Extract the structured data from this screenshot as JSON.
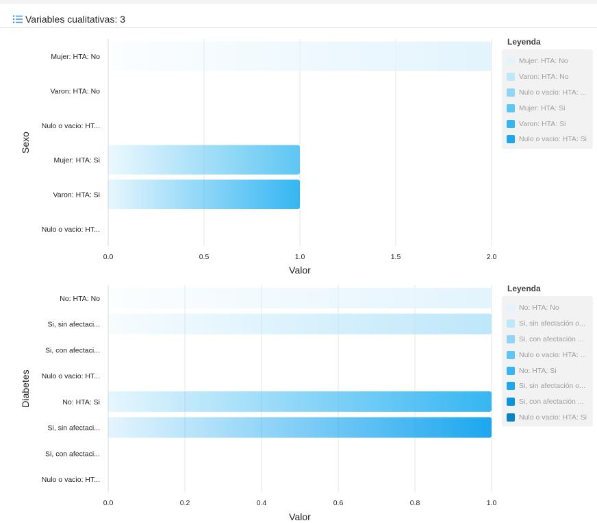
{
  "header": {
    "title": "Variables cualitativas: 3",
    "icon": "list-icon"
  },
  "colors": [
    "#e3f4fd",
    "#bde7fa",
    "#8fd6f6",
    "#5ec6f3",
    "#35b6f2",
    "#1ca7ef",
    "#0b95dc",
    "#0884c4"
  ],
  "chart_data": [
    {
      "type": "bar",
      "orientation": "horizontal",
      "ylabel": "Sexo",
      "xlabel": "Valor",
      "categories": [
        "Mujer: HTA: No",
        "Varon: HTA: No",
        "Nulo o vacio: HT...",
        "Mujer: HTA: Si",
        "Varon: HTA: Si",
        "Nulo o vacio: HT..."
      ],
      "values": [
        2,
        0,
        0,
        1,
        1,
        0
      ],
      "xlim": [
        0,
        2
      ],
      "xticks": [
        "0.0",
        "0.5",
        "1.0",
        "1.5",
        "2.0"
      ],
      "legend_title": "Leyenda",
      "legend": [
        "Mujer: HTA: No",
        "Varon: HTA: No",
        "Nulo o vacio: HTA: ...",
        "Mujer: HTA: Si",
        "Varon: HTA: Si",
        "Nulo o vacio: HTA: Si"
      ],
      "legend_placement": "right",
      "grid": true
    },
    {
      "type": "bar",
      "orientation": "horizontal",
      "ylabel": "Diabetes",
      "xlabel": "Valor",
      "categories": [
        "No: HTA: No",
        "Si, sin afectaci...",
        "Si, con afectaci...",
        "Nulo o vacio: HT...",
        "No: HTA: Si",
        "Si, sin afectaci...",
        "Si, con afectaci...",
        "Nulo o vacio: HT..."
      ],
      "values": [
        1,
        1,
        0,
        0,
        1,
        1,
        0,
        0
      ],
      "xlim": [
        0,
        1
      ],
      "xticks": [
        "0.0",
        "0.2",
        "0.4",
        "0.6",
        "0.8",
        "1.0"
      ],
      "legend_title": "Leyenda",
      "legend": [
        "No: HTA: No",
        "Si, sin afectación o...",
        "Si, con afectación ...",
        "Nulo o vacio: HTA: ...",
        "No: HTA: Si",
        "Si, sin afectación o...",
        "Si, con afectación ...",
        "Nulo o vacio: HTA: Si"
      ],
      "legend_placement": "right",
      "grid": true
    }
  ]
}
